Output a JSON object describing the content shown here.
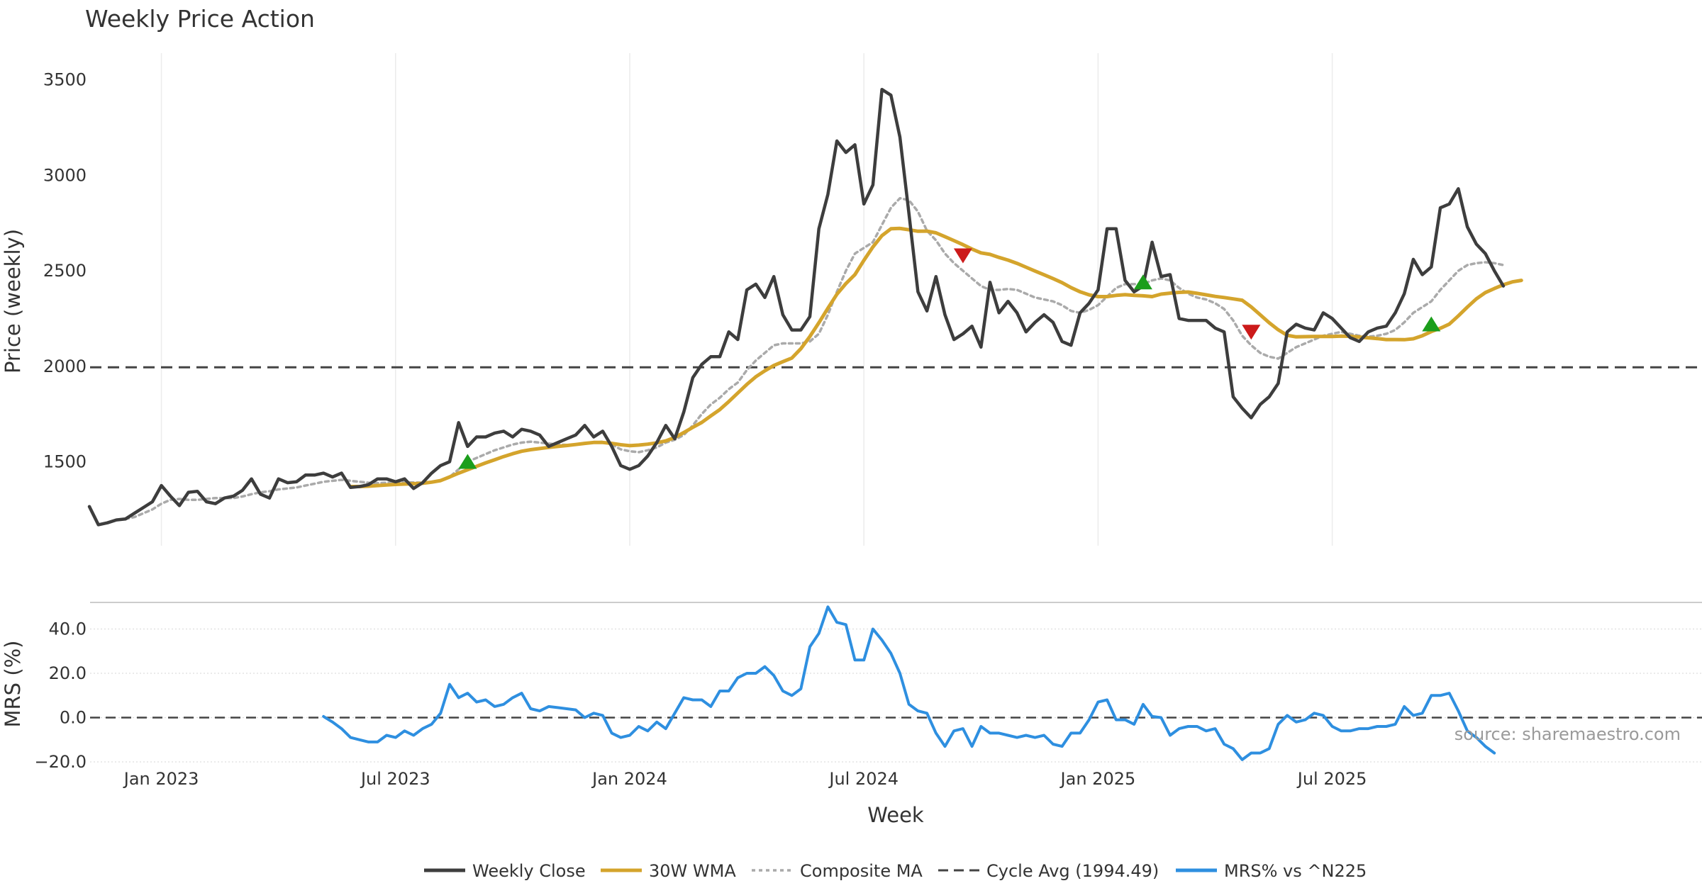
{
  "chart_data": [
    {
      "type": "line",
      "title": "Weekly Price Action",
      "xlabel": "",
      "ylabel": "Price (weekly)",
      "ylim": [
        1060,
        3640
      ],
      "yticks": [
        1500,
        2000,
        2500,
        3000,
        3500
      ],
      "xticks": [
        "Jan 2023",
        "Jul 2023",
        "Jan 2024",
        "Jul 2024",
        "Jan 2025",
        "Jul 2025"
      ],
      "x_start": "2022-11-07",
      "x_interval": "1 week",
      "series": [
        {
          "name": "Weekly Close",
          "color": "#3d3d3d",
          "values": [
            1265,
            1170,
            1180,
            1195,
            1200,
            1230,
            1260,
            1290,
            1375,
            1320,
            1270,
            1340,
            1345,
            1290,
            1280,
            1310,
            1320,
            1350,
            1410,
            1330,
            1310,
            1410,
            1390,
            1395,
            1430,
            1430,
            1440,
            1420,
            1440,
            1365,
            1370,
            1380,
            1410,
            1410,
            1395,
            1410,
            1360,
            1390,
            1440,
            1480,
            1500,
            1705,
            1580,
            1630,
            1630,
            1650,
            1660,
            1630,
            1670,
            1660,
            1640,
            1580,
            1600,
            1620,
            1640,
            1690,
            1630,
            1660,
            1580,
            1480,
            1460,
            1480,
            1530,
            1600,
            1690,
            1620,
            1760,
            1940,
            2010,
            2050,
            2050,
            2180,
            2140,
            2400,
            2430,
            2360,
            2470,
            2270,
            2190,
            2190,
            2260,
            2720,
            2900,
            3180,
            3120,
            3160,
            2850,
            2950,
            3450,
            3420,
            3200,
            2800,
            2390,
            2290,
            2470,
            2270,
            2140,
            2170,
            2210,
            2100,
            2440,
            2280,
            2340,
            2280,
            2180,
            2230,
            2270,
            2230,
            2130,
            2110,
            2280,
            2330,
            2400,
            2720,
            2720,
            2450,
            2390,
            2420,
            2650,
            2470,
            2480,
            2250,
            2240,
            2240,
            2240,
            2200,
            2180,
            1840,
            1780,
            1730,
            1800,
            1840,
            1910,
            2180,
            2220,
            2200,
            2190,
            2280,
            2250,
            2200,
            2150,
            2130,
            2180,
            2200,
            2210,
            2280,
            2380,
            2560,
            2480,
            2520,
            2830,
            2850,
            2930,
            2730,
            2640,
            2590,
            2500,
            2420
          ]
        },
        {
          "name": "30W WMA",
          "color": "#d4a42c",
          "values": [
            null,
            null,
            null,
            null,
            null,
            null,
            null,
            null,
            null,
            null,
            null,
            null,
            null,
            null,
            null,
            null,
            null,
            null,
            null,
            null,
            null,
            null,
            null,
            null,
            null,
            null,
            null,
            null,
            null,
            1370,
            1370,
            1372,
            1375,
            1378,
            1381,
            1383,
            1385,
            1387,
            1393,
            1401,
            1420,
            1440,
            1458,
            1476,
            1494,
            1510,
            1527,
            1542,
            1555,
            1563,
            1569,
            1575,
            1580,
            1585,
            1590,
            1596,
            1601,
            1601,
            1596,
            1589,
            1584,
            1587,
            1592,
            1599,
            1609,
            1627,
            1653,
            1680,
            1706,
            1740,
            1773,
            1815,
            1860,
            1905,
            1945,
            1976,
            2004,
            2024,
            2043,
            2092,
            2156,
            2228,
            2304,
            2377,
            2433,
            2480,
            2555,
            2625,
            2684,
            2720,
            2722,
            2715,
            2707,
            2708,
            2699,
            2679,
            2658,
            2637,
            2614,
            2594,
            2586,
            2570,
            2556,
            2539,
            2519,
            2499,
            2479,
            2459,
            2438,
            2412,
            2390,
            2374,
            2365,
            2365,
            2371,
            2375,
            2371,
            2369,
            2365,
            2378,
            2383,
            2387,
            2389,
            2382,
            2374,
            2366,
            2360,
            2353,
            2346,
            2311,
            2270,
            2228,
            2191,
            2162,
            2154,
            2155,
            2156,
            2156,
            2156,
            2158,
            2157,
            2153,
            2149,
            2145,
            2140,
            2140,
            2139,
            2144,
            2160,
            2182,
            2199,
            2221,
            2264,
            2310,
            2353,
            2386,
            2407,
            2427,
            2442,
            2450
          ]
        },
        {
          "name": "Composite MA",
          "color": "#aaaaaa",
          "values": [
            null,
            null,
            null,
            null,
            1200,
            1210,
            1230,
            1250,
            1280,
            1300,
            1305,
            1300,
            1300,
            1305,
            1310,
            1310,
            1310,
            1318,
            1330,
            1340,
            1345,
            1355,
            1360,
            1365,
            1375,
            1385,
            1395,
            1400,
            1405,
            1400,
            1395,
            1390,
            1388,
            1390,
            1392,
            1393,
            1391,
            1390,
            1393,
            1400,
            1420,
            1460,
            1500,
            1520,
            1540,
            1560,
            1575,
            1590,
            1600,
            1605,
            1600,
            1595,
            1590,
            1588,
            1590,
            1598,
            1600,
            1605,
            1590,
            1565,
            1555,
            1550,
            1560,
            1575,
            1600,
            1615,
            1640,
            1690,
            1750,
            1800,
            1835,
            1880,
            1915,
            1980,
            2030,
            2070,
            2110,
            2120,
            2120,
            2120,
            2130,
            2170,
            2270,
            2390,
            2500,
            2590,
            2620,
            2650,
            2740,
            2830,
            2880,
            2870,
            2810,
            2710,
            2660,
            2590,
            2540,
            2500,
            2460,
            2420,
            2400,
            2400,
            2405,
            2400,
            2380,
            2360,
            2350,
            2340,
            2320,
            2290,
            2280,
            2295,
            2320,
            2365,
            2410,
            2430,
            2430,
            2430,
            2450,
            2460,
            2450,
            2410,
            2380,
            2360,
            2350,
            2330,
            2300,
            2240,
            2160,
            2110,
            2070,
            2050,
            2040,
            2070,
            2100,
            2120,
            2140,
            2160,
            2170,
            2180,
            2170,
            2160,
            2155,
            2160,
            2170,
            2190,
            2230,
            2280,
            2310,
            2340,
            2400,
            2450,
            2500,
            2530,
            2540,
            2545,
            2540,
            2530
          ]
        },
        {
          "name": "Cycle Avg (1994.49)",
          "color": "#444444",
          "constant": 1994.49
        }
      ],
      "markers": [
        {
          "type": "buy",
          "index": 42,
          "price": 1500,
          "color": "#1c9e1c"
        },
        {
          "type": "sell",
          "index": 97,
          "price": 2580,
          "color": "#cc1a1a"
        },
        {
          "type": "buy",
          "index": 117,
          "price": 2440,
          "color": "#1c9e1c"
        },
        {
          "type": "sell",
          "index": 129,
          "price": 2180,
          "color": "#cc1a1a"
        },
        {
          "type": "buy",
          "index": 149,
          "price": 2220,
          "color": "#1c9e1c"
        }
      ]
    },
    {
      "type": "line",
      "title": "",
      "xlabel": "Week",
      "ylabel": "MRS (%)",
      "ylim": [
        -20,
        52
      ],
      "yticks": [
        -20.0,
        0.0,
        20.0,
        40.0
      ],
      "xticks": [
        "Jan 2023",
        "Jul 2023",
        "Jan 2024",
        "Jul 2024",
        "Jan 2025",
        "Jul 2025"
      ],
      "series": [
        {
          "name": "MRS% vs ^N225",
          "color": "#2e8fe0",
          "values": [
            null,
            null,
            null,
            null,
            null,
            null,
            null,
            null,
            null,
            null,
            null,
            null,
            null,
            null,
            null,
            null,
            null,
            null,
            null,
            null,
            null,
            null,
            null,
            null,
            null,
            null,
            0.5,
            -2,
            -5,
            -9,
            -10,
            -11,
            -11,
            -8,
            -9,
            -6,
            -8,
            -5,
            -3,
            2,
            15,
            9,
            11,
            7,
            8,
            5,
            6,
            9,
            11,
            4,
            3,
            5,
            4.5,
            4,
            3.5,
            0,
            2,
            1,
            -7,
            -9,
            -8,
            -4,
            -6,
            -2,
            -5,
            2,
            9,
            8,
            8,
            5,
            12,
            12,
            18,
            20,
            20,
            23,
            19,
            12,
            10,
            13,
            32,
            38,
            50,
            43,
            42,
            26,
            26,
            40,
            35,
            29,
            20,
            6,
            3,
            2,
            -7,
            -13,
            -6,
            -5,
            -13,
            -4,
            -7,
            -7,
            -8,
            -9,
            -8,
            -9,
            -8,
            -12,
            -13,
            -7,
            -7,
            -1,
            7,
            8,
            -1,
            -1,
            -3,
            6,
            0.5,
            0,
            -8,
            -5,
            -4,
            -4,
            -6,
            -5,
            -12,
            -14,
            -19,
            -16,
            -16,
            -14,
            -3,
            1,
            -2,
            -1,
            2,
            1,
            -4,
            -6,
            -6,
            -5,
            -5,
            -4,
            -4,
            -3,
            5,
            1,
            2,
            10,
            10,
            11,
            3,
            -6,
            -9,
            -13,
            -16
          ]
        }
      ]
    }
  ],
  "legend": [
    {
      "label": "Weekly Close",
      "style": "solid",
      "color": "#3d3d3d"
    },
    {
      "label": "30W WMA",
      "style": "solid",
      "color": "#d4a42c"
    },
    {
      "label": "Composite MA",
      "style": "dotted",
      "color": "#aaaaaa"
    },
    {
      "label": "Cycle Avg (1994.49)",
      "style": "dashed",
      "color": "#444444"
    },
    {
      "label": "MRS% vs ^N225",
      "style": "solid",
      "color": "#2e8fe0"
    }
  ],
  "source_text": "source: sharemaestro.com"
}
